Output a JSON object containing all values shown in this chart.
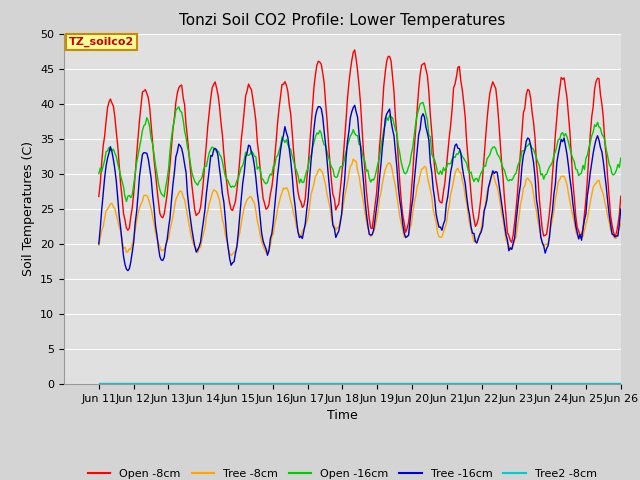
{
  "title": "Tonzi Soil CO2 Profile: Lower Temperatures",
  "xlabel": "Time",
  "ylabel": "Soil Temperatures (C)",
  "ylim": [
    0,
    50
  ],
  "yticks": [
    0,
    5,
    10,
    15,
    20,
    25,
    30,
    35,
    40,
    45,
    50
  ],
  "xtick_labels": [
    "Jun 11",
    "Jun 12",
    "Jun 13",
    "Jun 14",
    "Jun 15",
    "Jun 16",
    "Jun 17",
    "Jun 18",
    "Jun 19",
    "Jun 20",
    "Jun 21",
    "Jun 22",
    "Jun 23",
    "Jun 24",
    "Jun 25",
    "Jun 26"
  ],
  "series_colors": {
    "open_8cm": "#ff0000",
    "tree_8cm": "#ffa500",
    "open_16cm": "#00cc00",
    "tree_16cm": "#0000cc",
    "tree2_8cm": "#00cccc"
  },
  "legend_labels": [
    "Open -8cm",
    "Tree -8cm",
    "Open -16cm",
    "Tree -16cm",
    "Tree2 -8cm"
  ],
  "box_label": "TZ_soilco2",
  "box_color": "#ffff99",
  "box_edge_color": "#cc8800",
  "fig_bg_color": "#d4d4d4",
  "plot_bg_color": "#e0e0e0",
  "title_fontsize": 11,
  "axis_label_fontsize": 9,
  "tick_fontsize": 8,
  "legend_fontsize": 8
}
